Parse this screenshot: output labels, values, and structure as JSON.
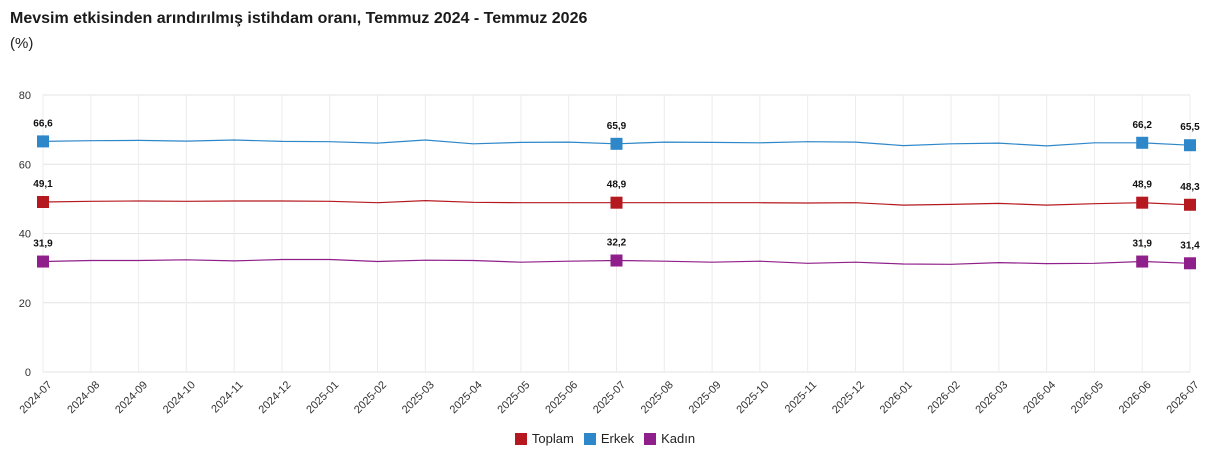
{
  "title": "Mevsim etkisinden arındırılmış istihdam oranı, Temmuz 2024 - Temmuz 2026",
  "subtitle": "(%)",
  "chart_data": {
    "type": "line",
    "title": "Mevsim etkisinden arındırılmış istihdam oranı, Temmuz 2024 - Temmuz 2026",
    "subtitle": "(%)",
    "x": [
      "2024-07",
      "2024-08",
      "2024-09",
      "2024-10",
      "2024-11",
      "2024-12",
      "2025-01",
      "2025-02",
      "2025-03",
      "2025-04",
      "2025-05",
      "2025-06",
      "2025-07",
      "2025-08",
      "2025-09",
      "2025-10",
      "2025-11",
      "2025-12",
      "2026-01",
      "2026-02",
      "2026-03",
      "2026-04",
      "2026-05",
      "2026-06",
      "2026-07"
    ],
    "ylim": [
      0,
      80
    ],
    "yticks": [
      0,
      20,
      40,
      60,
      80
    ],
    "grid": true,
    "legend_position": "bottom-center",
    "series": [
      {
        "name": "Toplam",
        "color": "#b5191f",
        "values": [
          49.1,
          49.3,
          49.4,
          49.3,
          49.4,
          49.4,
          49.3,
          48.9,
          49.5,
          49.0,
          48.9,
          48.9,
          48.9,
          48.9,
          48.9,
          48.9,
          48.8,
          48.9,
          48.2,
          48.4,
          48.7,
          48.2,
          48.6,
          48.9,
          48.3
        ],
        "labels": {
          "0": "49,1",
          "12": "48,9",
          "23": "48,9",
          "24": "48,3"
        }
      },
      {
        "name": "Erkek",
        "color": "#2e87c8",
        "values": [
          66.6,
          66.8,
          66.9,
          66.7,
          67.0,
          66.6,
          66.5,
          66.1,
          67.0,
          65.9,
          66.3,
          66.4,
          65.9,
          66.4,
          66.3,
          66.2,
          66.5,
          66.4,
          65.4,
          65.9,
          66.1,
          65.3,
          66.2,
          66.2,
          65.5
        ],
        "labels": {
          "0": "66,6",
          "12": "65,9",
          "23": "66,2",
          "24": "65,5"
        }
      },
      {
        "name": "Kadın",
        "color": "#8f1f8a",
        "values": [
          31.9,
          32.2,
          32.2,
          32.4,
          32.1,
          32.5,
          32.5,
          31.9,
          32.3,
          32.2,
          31.7,
          32.0,
          32.2,
          32.0,
          31.7,
          32.0,
          31.4,
          31.7,
          31.2,
          31.1,
          31.6,
          31.3,
          31.4,
          31.9,
          31.4
        ],
        "labels": {
          "0": "31,9",
          "12": "32,2",
          "23": "31,9",
          "24": "31,4"
        }
      }
    ]
  }
}
